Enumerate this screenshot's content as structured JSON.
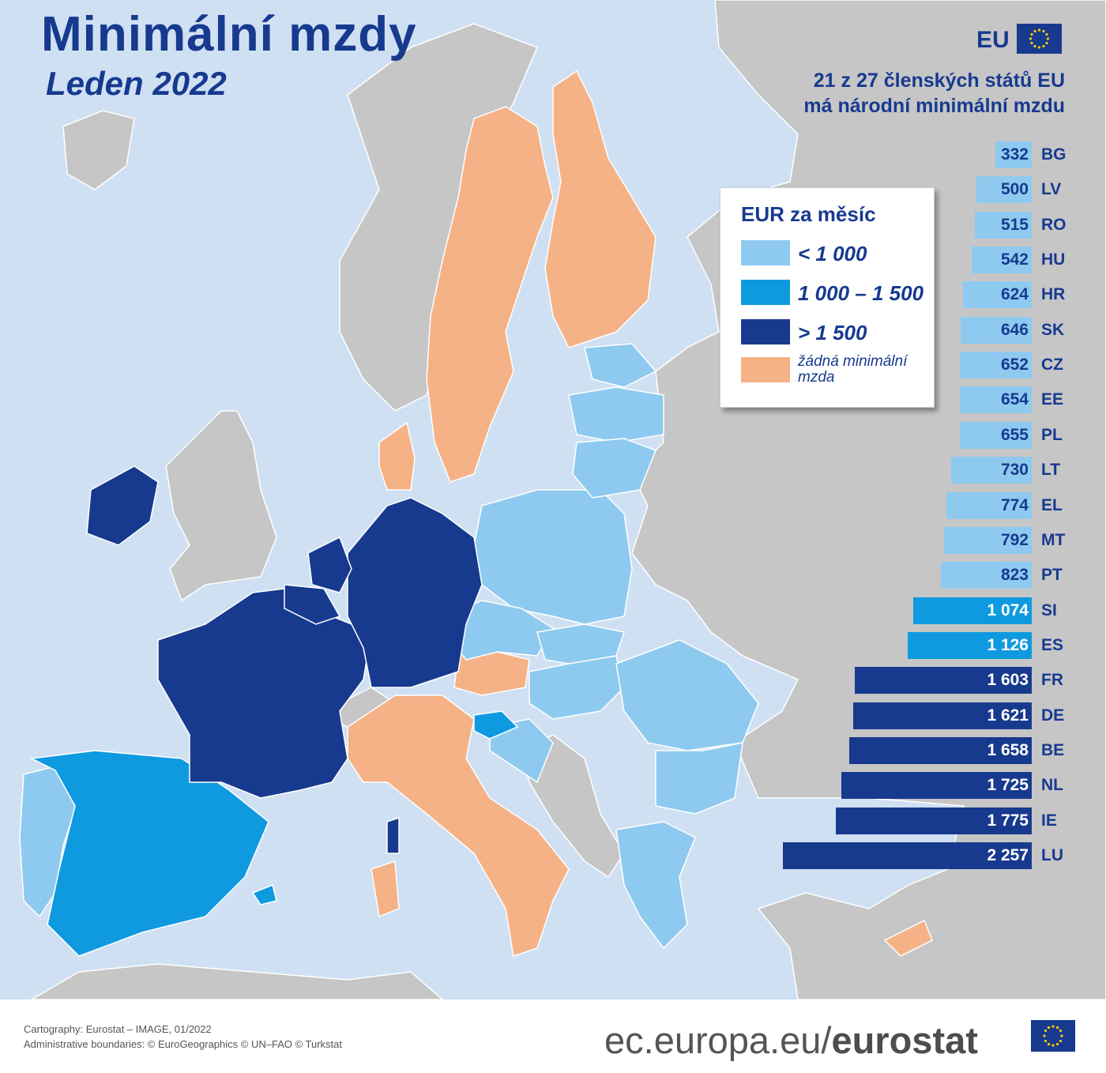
{
  "header": {
    "title": "Minimální mzdy",
    "subtitle": "Leden 2022",
    "eu_label": "EU",
    "info_line1": "21 z 27 členských států EU",
    "info_line2": "má národní minimální mzdu"
  },
  "legend": {
    "title": "EUR za měsíc",
    "items": [
      {
        "label": "< 1 000",
        "color": "#8ecaef"
      },
      {
        "label": "1 000 – 1 500",
        "color": "#0f9ae0"
      },
      {
        "label": "> 1 500",
        "color": "#173a8f"
      },
      {
        "label_line1": "žádná minimální",
        "label_line2": "mzda",
        "color": "#f5b286"
      }
    ]
  },
  "colors": {
    "sea": "#cfe0f3",
    "land_non_eu": "#c6c6c6",
    "low": "#8ecaef",
    "mid": "#0f9ae0",
    "high": "#173a8f",
    "none": "#f5b286",
    "text_blue": "#173a8f"
  },
  "chart_data": {
    "type": "bar",
    "title": "Minimální mzdy",
    "subtitle": "Leden 2022",
    "unit": "EUR za měsíc",
    "rows": [
      {
        "code": "BG",
        "value": 332,
        "label": "332",
        "class": "low"
      },
      {
        "code": "LV",
        "value": 500,
        "label": "500",
        "class": "low"
      },
      {
        "code": "RO",
        "value": 515,
        "label": "515",
        "class": "low"
      },
      {
        "code": "HU",
        "value": 542,
        "label": "542",
        "class": "low"
      },
      {
        "code": "HR",
        "value": 624,
        "label": "624",
        "class": "low"
      },
      {
        "code": "SK",
        "value": 646,
        "label": "646",
        "class": "low"
      },
      {
        "code": "CZ",
        "value": 652,
        "label": "652",
        "class": "low"
      },
      {
        "code": "EE",
        "value": 654,
        "label": "654",
        "class": "low"
      },
      {
        "code": "PL",
        "value": 655,
        "label": "655",
        "class": "low"
      },
      {
        "code": "LT",
        "value": 730,
        "label": "730",
        "class": "low"
      },
      {
        "code": "EL",
        "value": 774,
        "label": "774",
        "class": "low"
      },
      {
        "code": "MT",
        "value": 792,
        "label": "792",
        "class": "low"
      },
      {
        "code": "PT",
        "value": 823,
        "label": "823",
        "class": "low"
      },
      {
        "code": "SI",
        "value": 1074,
        "label": "1 074",
        "class": "mid"
      },
      {
        "code": "ES",
        "value": 1126,
        "label": "1 126",
        "class": "mid"
      },
      {
        "code": "FR",
        "value": 1603,
        "label": "1 603",
        "class": "high"
      },
      {
        "code": "DE",
        "value": 1621,
        "label": "1 621",
        "class": "high"
      },
      {
        "code": "BE",
        "value": 1658,
        "label": "1 658",
        "class": "high"
      },
      {
        "code": "NL",
        "value": 1725,
        "label": "1 725",
        "class": "high"
      },
      {
        "code": "IE",
        "value": 1775,
        "label": "1 775",
        "class": "high"
      },
      {
        "code": "LU",
        "value": 2257,
        "label": "2 257",
        "class": "high"
      }
    ]
  },
  "footer": {
    "credit_line1": "Cartography: Eurostat – IMAGE, 01/2022",
    "credit_line2": "Administrative boundaries: © EuroGeographics © UN–FAO © Turkstat",
    "url_prefix": "ec.europa.eu/",
    "url_brand": "eurostat"
  }
}
